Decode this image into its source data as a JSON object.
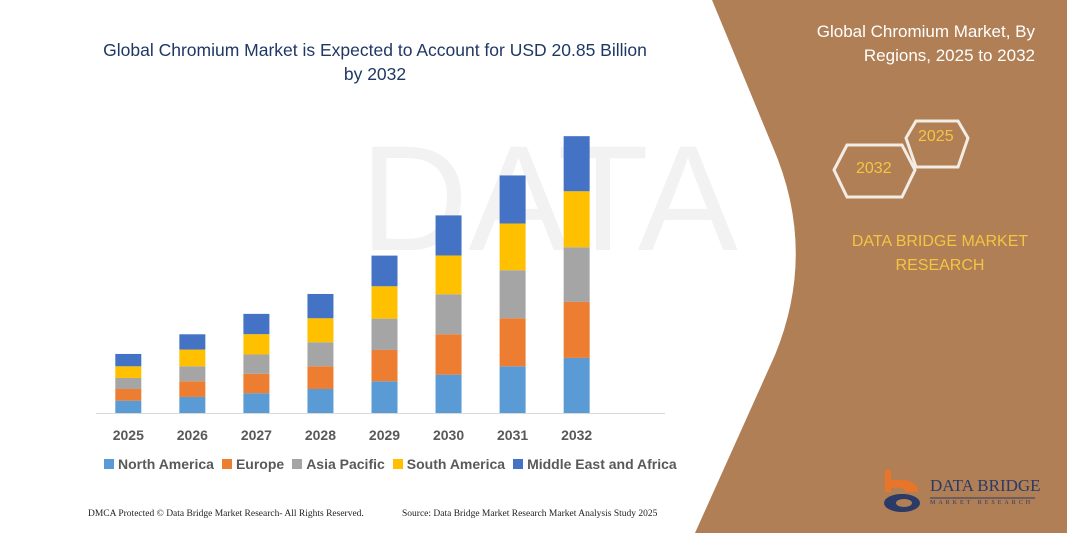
{
  "chart_title": "Global Chromium Market is Expected to Account for USD 20.85 Billion by 2032",
  "side_panel": {
    "title": "Global Chromium Market, By Regions, 2025 to 2032",
    "hex_years": [
      "2025",
      "2032"
    ],
    "brand": "DATA BRIDGE MARKET RESEARCH",
    "logo_text": "DATA BRIDGE",
    "logo_subtext": "MARKET RESEARCH"
  },
  "footer": {
    "left": "DMCA Protected © Data Bridge Market Research-  All Rights Reserved.",
    "right": "Source: Data Bridge Market Research  Market Analysis Study 2025"
  },
  "colors": {
    "panel": "#B07F55",
    "accent_yellow": "#F5C542"
  },
  "chart_data": {
    "type": "bar",
    "stacked": true,
    "title": "Global Chromium Market is Expected to Account for USD 20.85 Billion by 2032",
    "xlabel": "",
    "ylabel": "",
    "unit": "USD Billion (estimated)",
    "grid": false,
    "legend_position": "bottom",
    "categories": [
      "2025",
      "2026",
      "2027",
      "2028",
      "2029",
      "2030",
      "2031",
      "2032"
    ],
    "ylim": [
      0,
      21
    ],
    "series": [
      {
        "name": "North America",
        "color": "#5B9BD5",
        "values": [
          0.93,
          1.21,
          1.49,
          1.81,
          2.39,
          2.89,
          3.52,
          4.15
        ]
      },
      {
        "name": "Europe",
        "color": "#ED7D31",
        "values": [
          0.88,
          1.18,
          1.46,
          1.71,
          2.36,
          3.04,
          3.62,
          4.22
        ]
      },
      {
        "name": "Asia Pacific",
        "color": "#A5A5A5",
        "values": [
          0.83,
          1.13,
          1.46,
          1.81,
          2.36,
          3.02,
          3.62,
          4.12
        ]
      },
      {
        "name": "South America",
        "color": "#FFC000",
        "values": [
          0.88,
          1.26,
          1.53,
          1.81,
          2.44,
          2.92,
          3.52,
          4.22
        ]
      },
      {
        "name": "Middle East and Africa",
        "color": "#4472C4",
        "values": [
          0.93,
          1.15,
          1.53,
          1.83,
          2.31,
          3.02,
          3.62,
          4.15
        ]
      }
    ]
  }
}
